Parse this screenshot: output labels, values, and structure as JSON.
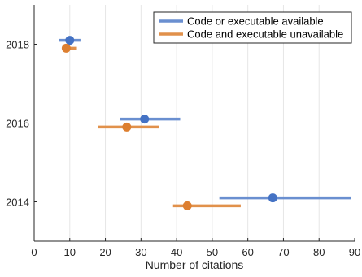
{
  "chart_data": {
    "type": "errorbar",
    "title": "",
    "xlabel": "Number of citations",
    "ylabel": "",
    "xlim": [
      0,
      90
    ],
    "ylim": [
      2013,
      2019
    ],
    "xticks": [
      "0",
      "10",
      "20",
      "30",
      "40",
      "50",
      "60",
      "70",
      "80",
      "90"
    ],
    "yticks": [
      "2014",
      "2016",
      "2018"
    ],
    "grid": "vertical",
    "legend_position": "top-right",
    "series": [
      {
        "name": "Code or executable available",
        "color": "#4472C4",
        "line_color": "#6A8FD0",
        "points": [
          {
            "year": 2018,
            "x": 10,
            "low": 7,
            "high": 13
          },
          {
            "year": 2016,
            "x": 31,
            "low": 24,
            "high": 41
          },
          {
            "year": 2014,
            "x": 67,
            "low": 52,
            "high": 89
          }
        ]
      },
      {
        "name": "Code and executable unavailable",
        "color": "#DD7F30",
        "line_color": "#E1914B",
        "points": [
          {
            "year": 2018,
            "x": 9,
            "low": 8,
            "high": 12
          },
          {
            "year": 2016,
            "x": 26,
            "low": 18,
            "high": 35
          },
          {
            "year": 2014,
            "x": 43,
            "low": 39,
            "high": 58
          }
        ]
      }
    ]
  }
}
